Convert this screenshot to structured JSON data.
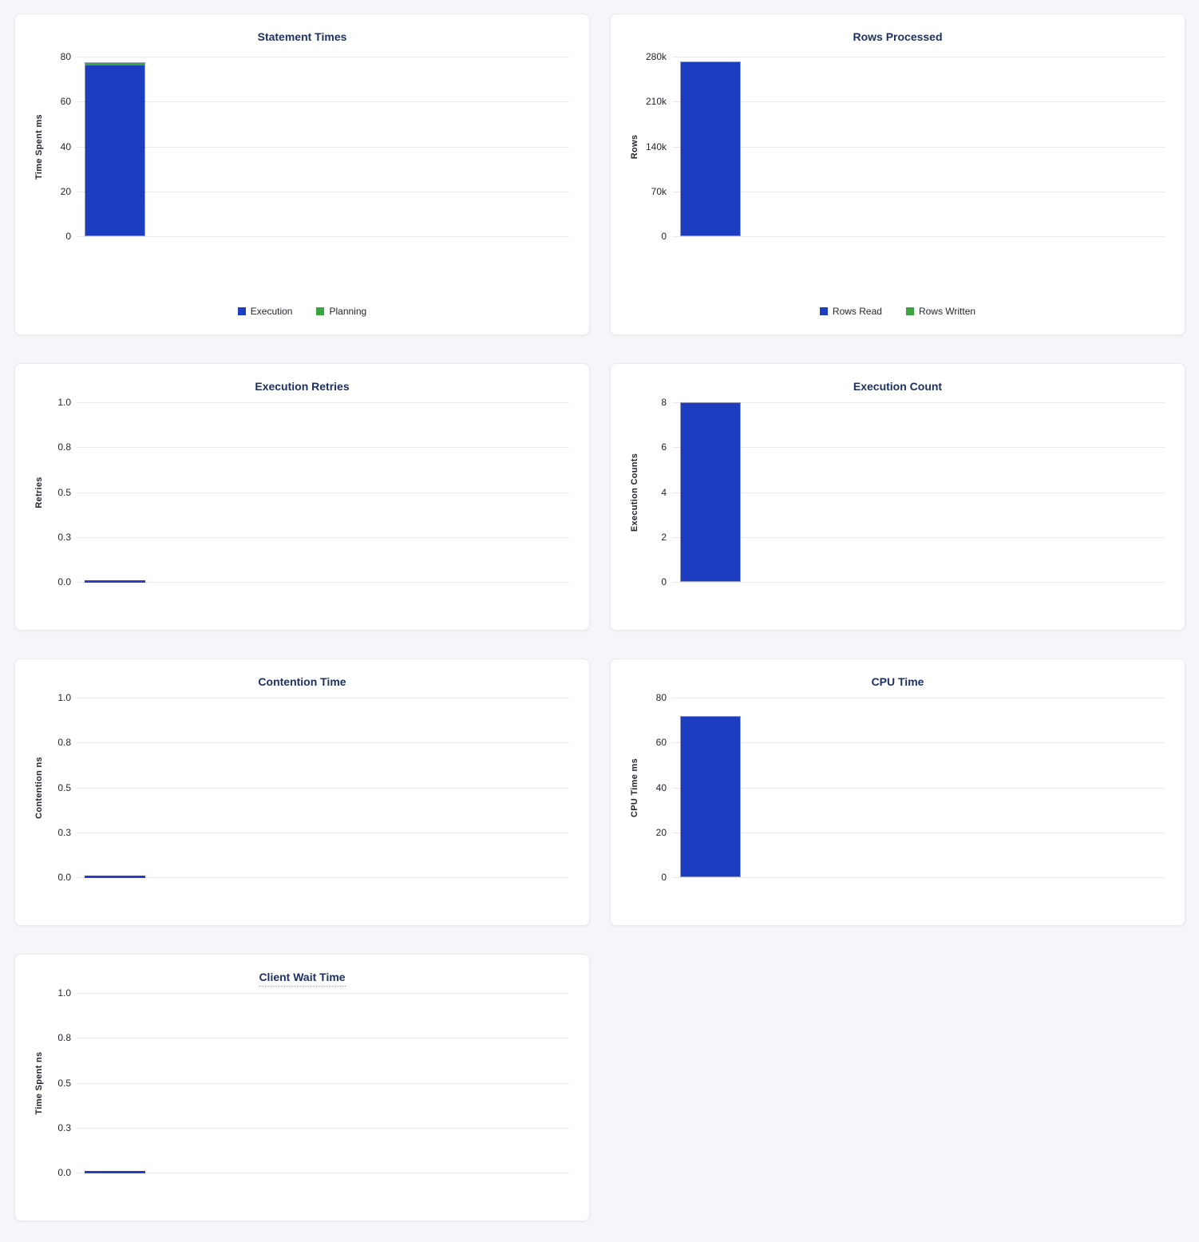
{
  "colors": {
    "page_bg": "#f4f6fa",
    "card_bg": "#ffffff",
    "title": "#1c2f5e",
    "tick_text": "#23262e",
    "gridline": "#e9eaec",
    "bar_blue": "#1c3dbf",
    "bar_green": "#3aa540",
    "zero_line": "#2a3cc2"
  },
  "chart_data": [
    {
      "type": "bar",
      "stacked": true,
      "tall": true,
      "title": "Statement Times",
      "ylabel": "Time Spent ms",
      "ylim": [
        0,
        80
      ],
      "ytick_labels": [
        "0",
        "20",
        "40",
        "60",
        "80"
      ],
      "categories": [
        ""
      ],
      "grid": true,
      "legend_position": "bottom",
      "series": [
        {
          "name": "Execution",
          "color": "blue",
          "values": [
            76.5
          ]
        },
        {
          "name": "Planning",
          "color": "green",
          "values": [
            1.0
          ]
        }
      ],
      "legend": [
        {
          "label": "Execution",
          "color": "blue"
        },
        {
          "label": "Planning",
          "color": "green"
        }
      ]
    },
    {
      "type": "bar",
      "stacked": true,
      "tall": true,
      "title": "Rows Processed",
      "ylabel": "Rows",
      "ylim": [
        0,
        280000
      ],
      "ytick_labels": [
        "0",
        "70k",
        "140k",
        "210k",
        "280k"
      ],
      "categories": [
        ""
      ],
      "grid": true,
      "legend_position": "bottom",
      "series": [
        {
          "name": "Rows Read",
          "color": "blue",
          "values": [
            272000
          ]
        },
        {
          "name": "Rows Written",
          "color": "green",
          "values": [
            0
          ]
        }
      ],
      "legend": [
        {
          "label": "Rows Read",
          "color": "blue"
        },
        {
          "label": "Rows Written",
          "color": "green"
        }
      ]
    },
    {
      "type": "bar",
      "stacked": false,
      "tall": false,
      "title": "Execution Retries",
      "ylabel": "Retries",
      "ylim": [
        0,
        1
      ],
      "ytick_labels": [
        "0.0",
        "0.3",
        "0.5",
        "0.8",
        "1.0"
      ],
      "categories": [
        ""
      ],
      "grid": true,
      "series": [
        {
          "name": "Retries",
          "color": "blue",
          "values": [
            0
          ]
        }
      ]
    },
    {
      "type": "bar",
      "stacked": false,
      "tall": false,
      "title": "Execution Count",
      "ylabel": "Execution Counts",
      "ylim": [
        0,
        8
      ],
      "ytick_labels": [
        "0",
        "2",
        "4",
        "6",
        "8"
      ],
      "categories": [
        ""
      ],
      "grid": true,
      "series": [
        {
          "name": "Execution Count",
          "color": "blue",
          "values": [
            8
          ]
        }
      ]
    },
    {
      "type": "bar",
      "stacked": false,
      "tall": false,
      "title": "Contention Time",
      "ylabel": "Contention ns",
      "ylim": [
        0,
        1
      ],
      "ytick_labels": [
        "0.0",
        "0.3",
        "0.5",
        "0.8",
        "1.0"
      ],
      "categories": [
        ""
      ],
      "grid": true,
      "series": [
        {
          "name": "Contention",
          "color": "blue",
          "values": [
            0
          ]
        }
      ]
    },
    {
      "type": "bar",
      "stacked": false,
      "tall": false,
      "title": "CPU Time",
      "ylabel": "CPU Time ms",
      "ylim": [
        0,
        80
      ],
      "ytick_labels": [
        "0",
        "20",
        "40",
        "60",
        "80"
      ],
      "categories": [
        ""
      ],
      "grid": true,
      "series": [
        {
          "name": "CPU Time",
          "color": "blue",
          "values": [
            72
          ]
        }
      ]
    },
    {
      "type": "bar",
      "stacked": false,
      "tall": false,
      "title": "Client Wait Time",
      "title_underlined": true,
      "ylabel": "Time Spent ns",
      "ylim": [
        0,
        1
      ],
      "ytick_labels": [
        "0.0",
        "0.3",
        "0.5",
        "0.8",
        "1.0"
      ],
      "categories": [
        ""
      ],
      "grid": true,
      "series": [
        {
          "name": "Client Wait",
          "color": "blue",
          "values": [
            0
          ]
        }
      ]
    }
  ]
}
